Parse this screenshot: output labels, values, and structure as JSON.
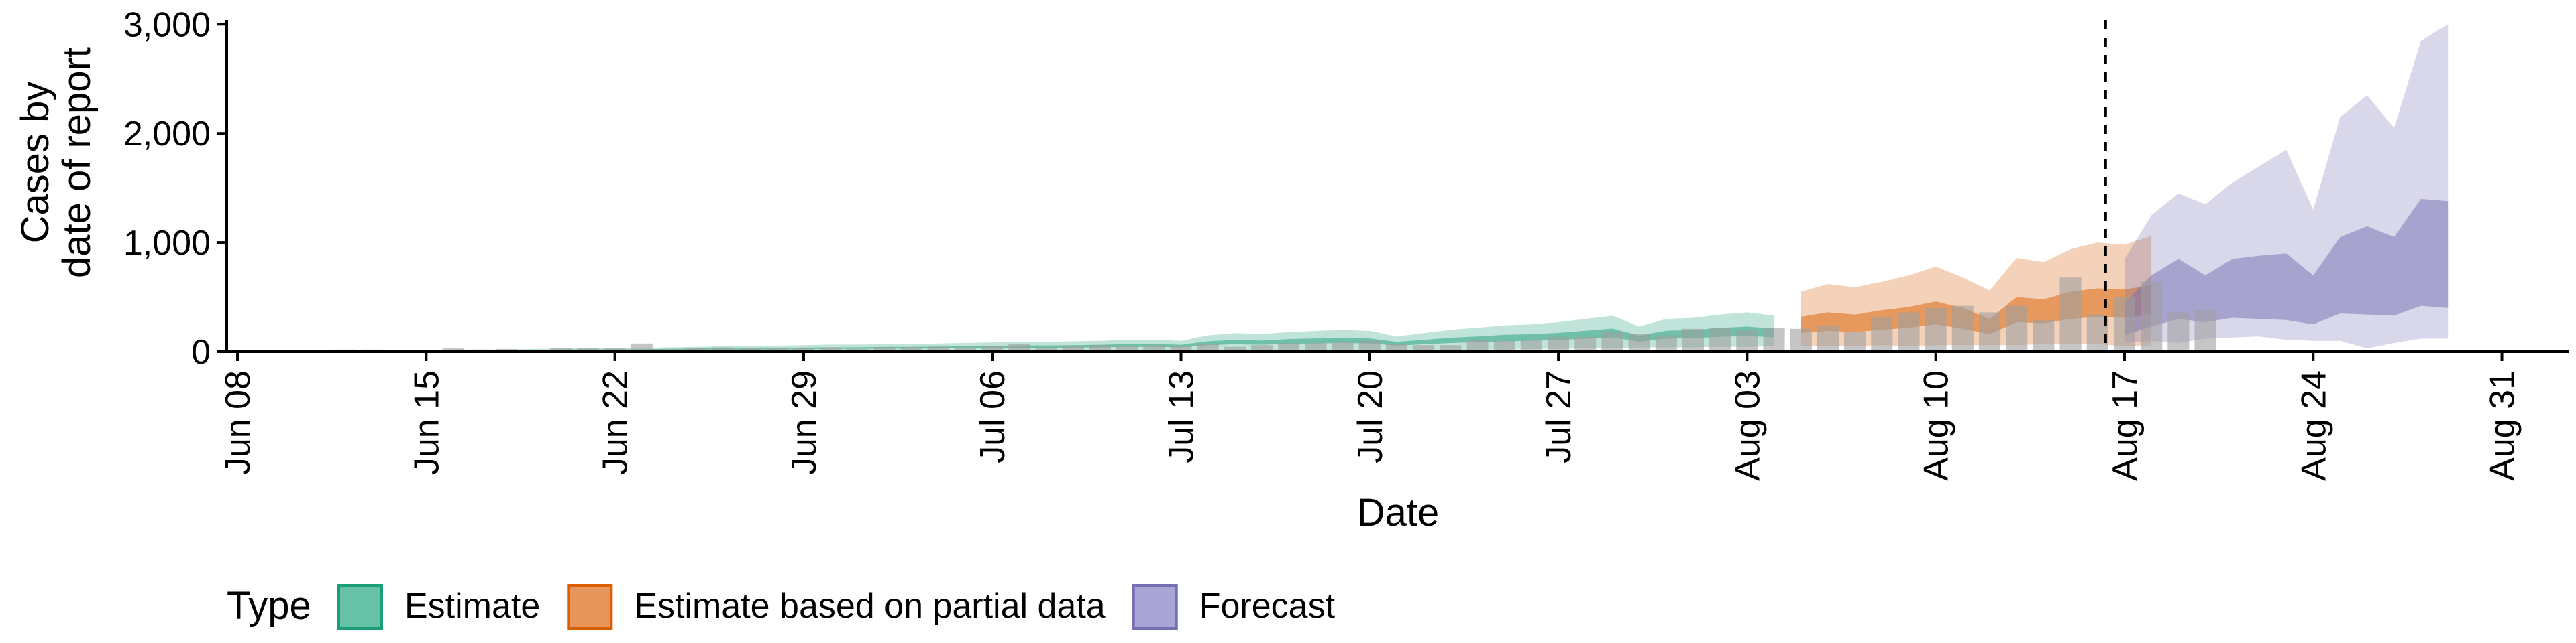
{
  "chart_data": {
    "type": "area",
    "xlabel": "Date",
    "ylabel_lines": [
      "Cases by",
      "date of report"
    ],
    "ylim": [
      0,
      3100
    ],
    "y_ticks": [
      {
        "value": 0,
        "label": "0"
      },
      {
        "value": 1000,
        "label": "1,000"
      },
      {
        "value": 2000,
        "label": "2,000"
      },
      {
        "value": 3000,
        "label": "3,000"
      }
    ],
    "x_ticks": [
      {
        "day": 0,
        "label": "Jun 08"
      },
      {
        "day": 7,
        "label": "Jun 15"
      },
      {
        "day": 14,
        "label": "Jun 22"
      },
      {
        "day": 21,
        "label": "Jun 29"
      },
      {
        "day": 28,
        "label": "Jul 06"
      },
      {
        "day": 35,
        "label": "Jul 13"
      },
      {
        "day": 42,
        "label": "Jul 20"
      },
      {
        "day": 49,
        "label": "Jul 27"
      },
      {
        "day": 56,
        "label": "Aug 03"
      },
      {
        "day": 63,
        "label": "Aug 10"
      },
      {
        "day": 70,
        "label": "Aug 17"
      },
      {
        "day": 77,
        "label": "Aug 24"
      },
      {
        "day": 84,
        "label": "Aug 31"
      }
    ],
    "x_range_days": [
      -0.4,
      86.5
    ],
    "date_origin": "Jun 08",
    "forecast_start_day": 69.3,
    "legend": {
      "title": "Type",
      "position": "bottom",
      "entries": [
        {
          "label": "Estimate",
          "fill": "#66c2a5",
          "stroke": "#1b9e77"
        },
        {
          "label": "Estimate based on partial data",
          "fill": "#e8955a",
          "stroke": "#d95f02"
        },
        {
          "label": "Forecast",
          "fill": "#a9a6d6",
          "stroke": "#7570b3"
        }
      ]
    },
    "colors": {
      "estimate": "#1b9e77",
      "partial": "#d95f02",
      "forecast": "#7570b3",
      "observed_bar": "#9e9e9e",
      "axis": "#000000"
    },
    "observed": {
      "start_day": 4,
      "values": [
        20,
        20,
        15,
        15,
        30,
        20,
        25,
        15,
        35,
        35,
        30,
        75,
        20,
        35,
        40,
        30,
        35,
        30,
        40,
        25,
        40,
        40,
        45,
        40,
        55,
        70,
        40,
        50,
        60,
        50,
        60,
        55,
        70,
        45,
        60,
        80,
        80,
        85,
        100,
        70,
        60,
        60,
        110,
        100,
        110,
        135,
        135,
        180,
        160,
        150,
        210,
        220,
        200,
        220,
        210,
        240,
        180,
        320,
        360,
        400,
        420,
        360,
        420,
        290,
        680,
        340,
        500,
        640,
        360,
        380
      ]
    },
    "series": [
      {
        "name": "Estimate",
        "start_day": 4,
        "outer_low": [
          0,
          0,
          0,
          0,
          0,
          0,
          0,
          0,
          0,
          0,
          0,
          0,
          0,
          0,
          0,
          0,
          0,
          0,
          0,
          0,
          0,
          0,
          0,
          0,
          0,
          0,
          0,
          0,
          0,
          0,
          0,
          5,
          5,
          5,
          10,
          10,
          10,
          10,
          15,
          15,
          15,
          10,
          20,
          20,
          25,
          25,
          30,
          30,
          40,
          40,
          40,
          45,
          45,
          50
        ],
        "outer_high": [
          15,
          15,
          15,
          15,
          20,
          20,
          20,
          25,
          30,
          35,
          35,
          35,
          40,
          45,
          50,
          50,
          55,
          60,
          65,
          65,
          70,
          70,
          75,
          80,
          85,
          90,
          90,
          95,
          100,
          110,
          110,
          100,
          150,
          170,
          160,
          180,
          190,
          200,
          190,
          140,
          170,
          200,
          220,
          240,
          250,
          270,
          300,
          330,
          230,
          300,
          310,
          340,
          360,
          330
        ],
        "inner_low": [
          5,
          5,
          5,
          5,
          8,
          8,
          8,
          10,
          12,
          14,
          14,
          14,
          16,
          18,
          20,
          20,
          22,
          24,
          26,
          26,
          28,
          28,
          30,
          32,
          34,
          36,
          36,
          38,
          40,
          44,
          44,
          40,
          60,
          68,
          64,
          72,
          76,
          80,
          76,
          56,
          68,
          80,
          88,
          96,
          100,
          108,
          120,
          132,
          92,
          120,
          124,
          136,
          144,
          132
        ],
        "inner_high": [
          10,
          10,
          10,
          10,
          14,
          14,
          14,
          16,
          20,
          22,
          22,
          22,
          26,
          28,
          32,
          32,
          34,
          38,
          40,
          40,
          44,
          44,
          48,
          50,
          54,
          58,
          58,
          60,
          64,
          70,
          70,
          64,
          96,
          108,
          102,
          116,
          122,
          128,
          122,
          90,
          108,
          128,
          140,
          154,
          160,
          172,
          192,
          212,
          148,
          192,
          198,
          218,
          230,
          212
        ]
      },
      {
        "name": "Estimate based on partial data",
        "start_day": 58,
        "outer_low": [
          50,
          50,
          50,
          60,
          50,
          60,
          60,
          60,
          60,
          70,
          70,
          70,
          50,
          60
        ],
        "outer_high": [
          550,
          620,
          590,
          640,
          700,
          780,
          680,
          560,
          860,
          820,
          940,
          1000,
          980,
          1060
        ],
        "inner_low": [
          170,
          190,
          180,
          200,
          220,
          250,
          210,
          160,
          270,
          260,
          300,
          320,
          310,
          340
        ],
        "inner_high": [
          320,
          360,
          340,
          380,
          410,
          460,
          400,
          300,
          500,
          480,
          550,
          580,
          570,
          610
        ]
      },
      {
        "name": "Forecast",
        "start_day": 70,
        "outer_low": [
          80,
          100,
          80,
          120,
          130,
          140,
          110,
          100,
          100,
          30,
          80,
          120,
          120
        ],
        "outer_high": [
          850,
          1250,
          1450,
          1350,
          1550,
          1700,
          1850,
          1300,
          2150,
          2350,
          2050,
          2850,
          3000
        ],
        "inner_low": [
          150,
          230,
          300,
          270,
          310,
          300,
          290,
          250,
          350,
          340,
          330,
          420,
          400
        ],
        "inner_high": [
          450,
          700,
          850,
          700,
          850,
          880,
          900,
          700,
          1050,
          1150,
          1050,
          1400,
          1380
        ]
      }
    ]
  }
}
